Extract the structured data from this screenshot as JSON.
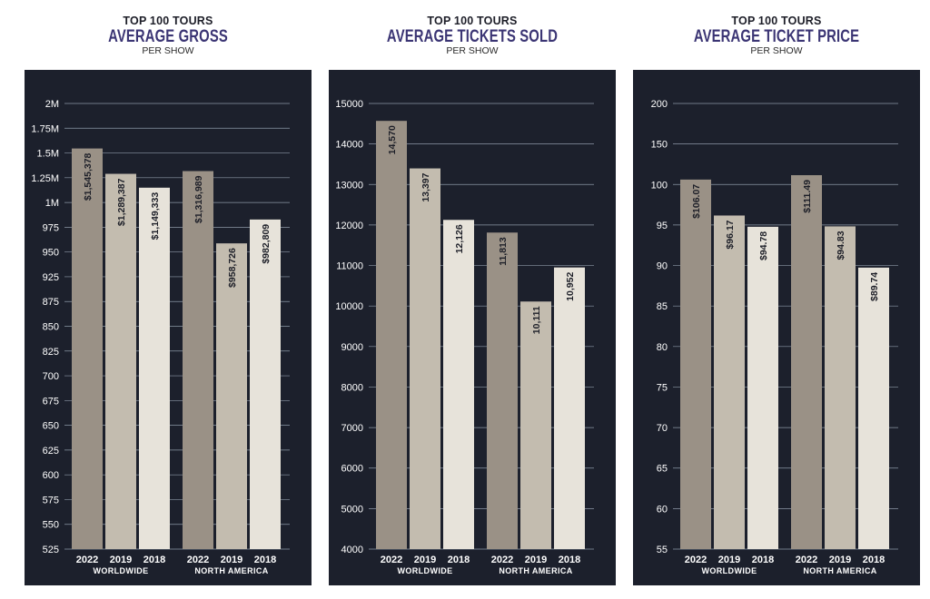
{
  "colors": {
    "background": "#1c202c",
    "grid": "#8d98a6",
    "bar_2022": "#9a9186",
    "bar_2019": "#c3bcaf",
    "bar_2018": "#e7e3da",
    "title_accent": "#3b3574"
  },
  "chart_data": [
    {
      "type": "bar",
      "eyebrow": "TOP 100 TOURS",
      "title": "AVERAGE GROSS",
      "subtitle": "PER SHOW",
      "groups": [
        "WORLDWIDE",
        "NORTH AMERICA"
      ],
      "categories": [
        "2022",
        "2019",
        "2018"
      ],
      "series": [
        {
          "name": "WORLDWIDE",
          "values": [
            1545378,
            1289387,
            1149333
          ],
          "labels": [
            "$1,545,378",
            "$1,289,387",
            "$1,149,333"
          ]
        },
        {
          "name": "NORTH AMERICA",
          "values": [
            1316989,
            958726,
            982809
          ],
          "labels": [
            "$1,316,989",
            "$958,726",
            "$982,809"
          ]
        }
      ],
      "ticks": [
        "525",
        "550",
        "575",
        "600",
        "625",
        "650",
        "675",
        "700",
        "825",
        "850",
        "875",
        "925",
        "950",
        "975",
        "1M",
        "1.25M",
        "1.5M",
        "1.75M",
        "2M"
      ],
      "tick_values": [
        525000,
        550000,
        575000,
        600000,
        625000,
        650000,
        675000,
        700000,
        825000,
        850000,
        875000,
        925000,
        950000,
        975000,
        1000000,
        1250000,
        1500000,
        1750000,
        2000000
      ],
      "ylim": [
        525000,
        2000000
      ],
      "grid": true
    },
    {
      "type": "bar",
      "eyebrow": "TOP 100 TOURS",
      "title": "AVERAGE TICKETS SOLD",
      "subtitle": "PER SHOW",
      "groups": [
        "WORLDWIDE",
        "NORTH AMERICA"
      ],
      "categories": [
        "2022",
        "2019",
        "2018"
      ],
      "series": [
        {
          "name": "WORLDWIDE",
          "values": [
            14570,
            13397,
            12126
          ],
          "labels": [
            "14,570",
            "13,397",
            "12,126"
          ]
        },
        {
          "name": "NORTH AMERICA",
          "values": [
            11813,
            10111,
            10952
          ],
          "labels": [
            "11,813",
            "10,111",
            "10,952"
          ]
        }
      ],
      "ticks": [
        "4000",
        "5000",
        "6000",
        "7000",
        "8000",
        "9000",
        "10000",
        "11000",
        "12000",
        "13000",
        "14000",
        "15000"
      ],
      "tick_values": [
        4000,
        5000,
        6000,
        7000,
        8000,
        9000,
        10000,
        11000,
        12000,
        13000,
        14000,
        15000
      ],
      "ylim": [
        4000,
        15000
      ],
      "grid": true
    },
    {
      "type": "bar",
      "eyebrow": "TOP 100 TOURS",
      "title": "AVERAGE TICKET PRICE",
      "subtitle": "PER SHOW",
      "groups": [
        "WORLDWIDE",
        "NORTH AMERICA"
      ],
      "categories": [
        "2022",
        "2019",
        "2018"
      ],
      "series": [
        {
          "name": "WORLDWIDE",
          "values": [
            106.07,
            96.17,
            94.78
          ],
          "labels": [
            "$106.07",
            "$96.17",
            "$94.78"
          ]
        },
        {
          "name": "NORTH AMERICA",
          "values": [
            111.49,
            94.83,
            89.74
          ],
          "labels": [
            "$111.49",
            "$94.83",
            "$89.74"
          ]
        }
      ],
      "ticks": [
        "55",
        "60",
        "65",
        "70",
        "75",
        "80",
        "85",
        "90",
        "95",
        "100",
        "150",
        "200"
      ],
      "tick_values": [
        55,
        60,
        65,
        70,
        75,
        80,
        85,
        90,
        95,
        100,
        150,
        200
      ],
      "ylim": [
        55,
        200
      ],
      "grid": true
    }
  ]
}
